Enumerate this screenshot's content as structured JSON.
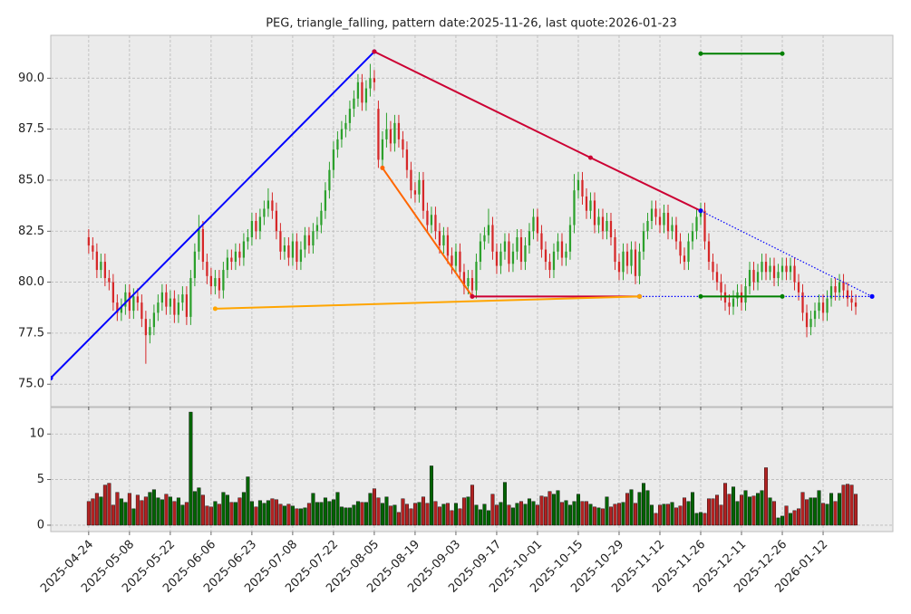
{
  "chart_data": {
    "type": "candlestick",
    "title": "PEG, triangle_falling, pattern date:2025-11-26, last quote:2026-01-23",
    "up_color": "#2ca02c",
    "down_color": "#d62728",
    "volume_up_color": "#006400",
    "volume_down_color": "#b22222",
    "grid": true,
    "xlim": [
      -9.3,
      197.1
    ],
    "xticks": [
      {
        "value": 0,
        "label": "2025-04-24"
      },
      {
        "value": 10,
        "label": "2025-05-08"
      },
      {
        "value": 20,
        "label": "2025-05-22"
      },
      {
        "value": 30,
        "label": "2025-06-06"
      },
      {
        "value": 40,
        "label": "2025-06-23"
      },
      {
        "value": 50,
        "label": "2025-07-08"
      },
      {
        "value": 60,
        "label": "2025-07-22"
      },
      {
        "value": 70,
        "label": "2025-08-05"
      },
      {
        "value": 80,
        "label": "2025-08-19"
      },
      {
        "value": 90,
        "label": "2025-09-03"
      },
      {
        "value": 100,
        "label": "2025-09-17"
      },
      {
        "value": 110,
        "label": "2025-10-01"
      },
      {
        "value": 120,
        "label": "2025-10-15"
      },
      {
        "value": 130,
        "label": "2025-10-29"
      },
      {
        "value": 140,
        "label": "2025-11-12"
      },
      {
        "value": 150,
        "label": "2025-11-26"
      },
      {
        "value": 160,
        "label": "2025-12-11"
      },
      {
        "value": 170,
        "label": "2025-12-26"
      },
      {
        "value": 180,
        "label": "2026-01-12"
      }
    ],
    "ylim": [
      73.9,
      92.1
    ],
    "yticks": [
      {
        "value": 75,
        "label": "75.0"
      },
      {
        "value": 77.5,
        "label": "77.5"
      },
      {
        "value": 80,
        "label": "80.0"
      },
      {
        "value": 82.5,
        "label": "82.5"
      },
      {
        "value": 85,
        "label": "85.0"
      },
      {
        "value": 87.5,
        "label": "87.5"
      },
      {
        "value": 90,
        "label": "90.0"
      }
    ],
    "candles": {
      "open": [
        82.2,
        81.8,
        81.5,
        80.6,
        81.0,
        80.2,
        80.0,
        79.0,
        78.5,
        78.8,
        79.5,
        78.6,
        79.3,
        79.0,
        78.2,
        77.4,
        77.8,
        78.5,
        79.0,
        79.5,
        78.8,
        79.2,
        78.4,
        79.0,
        79.4,
        78.3,
        80.2,
        81.5,
        82.6,
        81.0,
        80.3,
        79.8,
        80.2,
        79.6,
        80.6,
        81.2,
        81.0,
        81.5,
        81.2,
        82.0,
        82.2,
        83.0,
        82.5,
        83.2,
        83.6,
        84.0,
        83.5,
        82.5,
        81.5,
        81.8,
        81.2,
        82.0,
        81.0,
        81.6,
        82.3,
        81.8,
        82.5,
        82.8,
        83.5,
        84.5,
        85.5,
        86.5,
        87.0,
        87.5,
        87.8,
        88.5,
        89.0,
        89.8,
        88.8,
        89.5,
        90.0,
        88.5,
        86.0,
        87.0,
        87.5,
        86.8,
        87.8,
        87.0,
        86.5,
        85.5,
        84.5,
        84.3,
        85.0,
        83.5,
        82.8,
        83.3,
        82.5,
        81.8,
        82.3,
        81.3,
        80.8,
        81.5,
        80.5,
        79.8,
        80.2,
        79.6,
        81.0,
        82.0,
        82.3,
        82.8,
        81.5,
        80.8,
        81.5,
        82.0,
        80.9,
        81.5,
        82.2,
        81.0,
        81.8,
        82.5,
        83.2,
        82.4,
        81.6,
        81.0,
        80.6,
        81.5,
        82.0,
        81.2,
        81.5,
        82.8,
        84.5,
        85.0,
        84.2,
        83.5,
        84.0,
        82.8,
        83.2,
        82.5,
        83.0,
        82.2,
        81.0,
        80.5,
        81.5,
        80.8,
        81.6,
        80.3,
        81.5,
        82.5,
        83.0,
        83.6,
        83.2,
        82.8,
        83.4,
        82.5,
        82.8,
        82.0,
        81.3,
        81.0,
        82.0,
        82.5,
        83.2,
        83.5,
        82.0,
        81.0,
        80.5,
        80.0,
        79.5,
        79.0,
        78.8,
        79.2,
        79.5,
        79.0,
        79.8,
        80.6,
        80.0,
        80.5,
        81.0,
        80.5,
        80.8,
        80.2,
        80.5,
        80.8,
        80.5,
        80.8,
        80.0,
        79.5,
        78.5,
        77.8,
        78.2,
        78.6,
        79.0,
        78.5,
        79.2,
        79.8,
        79.5,
        80.0,
        79.6,
        79.2,
        79.0
      ],
      "high": [
        82.6,
        82.2,
        81.9,
        81.4,
        81.4,
        80.6,
        80.4,
        79.4,
        79.2,
        79.9,
        79.9,
        79.7,
        79.7,
        79.4,
        78.6,
        78.2,
        78.9,
        79.4,
        79.9,
        79.9,
        79.6,
        79.6,
        79.4,
        79.8,
        79.8,
        80.6,
        81.9,
        83.3,
        83.0,
        81.4,
        80.7,
        80.6,
        80.6,
        81.0,
        81.6,
        81.6,
        81.9,
        81.9,
        82.4,
        82.6,
        83.4,
        83.4,
        83.6,
        84.0,
        84.6,
        84.4,
        83.9,
        82.9,
        82.2,
        82.2,
        82.4,
        82.4,
        82.0,
        82.7,
        82.7,
        82.9,
        83.2,
        83.9,
        84.9,
        85.9,
        86.9,
        87.4,
        87.9,
        88.2,
        88.9,
        89.4,
        90.2,
        90.2,
        89.9,
        90.7,
        90.4,
        88.9,
        87.4,
        88.3,
        87.9,
        88.2,
        88.2,
        87.4,
        86.9,
        85.9,
        84.9,
        85.4,
        85.4,
        83.9,
        83.7,
        83.7,
        82.9,
        82.7,
        82.7,
        81.7,
        81.9,
        81.9,
        80.9,
        80.6,
        80.6,
        81.4,
        82.4,
        82.7,
        83.6,
        83.2,
        81.9,
        81.9,
        82.4,
        82.4,
        81.9,
        82.6,
        82.6,
        82.2,
        82.9,
        83.6,
        83.6,
        82.8,
        82.0,
        81.4,
        81.9,
        82.4,
        82.4,
        81.9,
        83.2,
        85.3,
        85.4,
        85.4,
        84.6,
        84.4,
        84.4,
        83.6,
        83.6,
        83.4,
        83.4,
        82.6,
        81.4,
        81.9,
        81.9,
        82.0,
        82.0,
        81.9,
        82.9,
        83.4,
        84.0,
        84.0,
        83.6,
        83.8,
        83.8,
        83.2,
        83.2,
        82.4,
        81.7,
        82.4,
        82.9,
        83.6,
        83.9,
        83.9,
        82.4,
        81.4,
        80.9,
        80.4,
        79.9,
        79.4,
        79.6,
        79.9,
        79.9,
        80.2,
        81.0,
        81.0,
        80.9,
        81.4,
        81.4,
        81.2,
        81.2,
        80.9,
        81.2,
        81.2,
        81.2,
        81.2,
        80.4,
        79.9,
        78.9,
        78.6,
        79.0,
        79.4,
        79.4,
        79.6,
        80.2,
        80.2,
        80.4,
        80.4,
        80.0,
        79.6,
        79.4
      ],
      "low": [
        81.4,
        81.1,
        80.2,
        80.2,
        79.8,
        79.6,
        78.6,
        78.1,
        78.1,
        78.4,
        78.2,
        78.2,
        78.6,
        77.8,
        76.0,
        77.0,
        77.4,
        78.1,
        78.6,
        78.4,
        78.4,
        78.0,
        78.0,
        78.6,
        77.9,
        77.9,
        79.8,
        81.1,
        80.6,
        79.9,
        79.4,
        79.4,
        79.2,
        79.2,
        80.2,
        80.6,
        80.6,
        80.8,
        80.8,
        81.6,
        81.8,
        82.1,
        82.1,
        82.8,
        83.2,
        83.1,
        82.1,
        81.1,
        81.1,
        80.8,
        80.8,
        80.6,
        80.6,
        81.2,
        81.4,
        81.4,
        82.1,
        82.4,
        83.1,
        84.1,
        85.1,
        86.1,
        86.6,
        87.1,
        87.4,
        88.1,
        88.6,
        88.4,
        88.4,
        89.1,
        89.4,
        85.6,
        85.6,
        86.6,
        86.4,
        86.4,
        86.6,
        86.1,
        85.1,
        84.1,
        83.9,
        83.9,
        83.1,
        82.4,
        82.4,
        82.1,
        81.4,
        81.4,
        80.9,
        80.4,
        80.4,
        80.1,
        79.4,
        79.4,
        79.2,
        79.2,
        80.6,
        81.6,
        81.9,
        81.1,
        80.4,
        80.4,
        81.1,
        80.5,
        80.5,
        81.1,
        80.6,
        80.6,
        81.4,
        82.1,
        82.0,
        81.2,
        80.6,
        80.2,
        80.2,
        81.1,
        80.8,
        80.8,
        81.1,
        82.4,
        84.1,
        83.8,
        83.1,
        83.1,
        82.4,
        82.4,
        82.1,
        82.1,
        81.8,
        80.6,
        80.1,
        80.1,
        80.4,
        80.4,
        79.9,
        79.9,
        81.1,
        82.1,
        82.6,
        82.8,
        82.4,
        82.4,
        82.1,
        82.1,
        81.6,
        80.9,
        80.6,
        80.6,
        81.6,
        82.1,
        82.8,
        81.6,
        80.6,
        80.1,
        79.6,
        79.1,
        78.6,
        78.4,
        78.4,
        78.8,
        78.6,
        78.6,
        79.4,
        79.6,
        79.6,
        80.1,
        80.1,
        80.1,
        79.8,
        79.8,
        80.1,
        80.1,
        80.1,
        79.6,
        79.1,
        78.1,
        77.3,
        77.4,
        77.8,
        78.2,
        78.1,
        78.1,
        78.8,
        79.1,
        79.1,
        79.2,
        78.8,
        78.6,
        78.4
      ],
      "close": [
        81.8,
        81.5,
        80.6,
        81.0,
        80.2,
        80.0,
        79.0,
        78.5,
        78.8,
        79.5,
        78.6,
        79.3,
        79.0,
        78.2,
        77.4,
        77.8,
        78.5,
        79.0,
        79.5,
        78.8,
        79.2,
        78.4,
        79.0,
        79.4,
        78.3,
        80.2,
        81.5,
        82.6,
        81.0,
        80.3,
        79.8,
        80.2,
        79.6,
        80.6,
        81.2,
        81.0,
        81.5,
        81.2,
        82.0,
        82.2,
        83.0,
        82.5,
        83.2,
        83.6,
        84.0,
        83.5,
        82.5,
        81.5,
        81.8,
        81.2,
        82.0,
        81.0,
        81.6,
        82.3,
        81.8,
        82.5,
        82.8,
        83.5,
        84.5,
        85.5,
        86.5,
        87.0,
        87.5,
        87.8,
        88.5,
        89.0,
        89.8,
        88.8,
        89.5,
        90.0,
        89.8,
        86.0,
        87.0,
        87.5,
        86.8,
        87.8,
        87.0,
        86.5,
        85.5,
        84.5,
        84.3,
        85.0,
        83.5,
        82.8,
        83.3,
        82.5,
        81.8,
        82.3,
        81.3,
        80.8,
        81.5,
        80.5,
        79.8,
        80.2,
        79.6,
        81.0,
        82.0,
        82.3,
        82.8,
        81.5,
        80.8,
        81.5,
        82.0,
        80.9,
        81.5,
        82.2,
        81.0,
        81.8,
        82.5,
        83.2,
        82.4,
        81.6,
        81.0,
        80.6,
        81.5,
        82.0,
        81.2,
        81.5,
        82.8,
        84.5,
        85.0,
        84.2,
        83.5,
        84.0,
        82.8,
        83.2,
        82.5,
        83.0,
        82.2,
        81.0,
        80.5,
        81.5,
        80.8,
        81.6,
        80.3,
        81.5,
        82.5,
        83.0,
        83.6,
        83.2,
        82.8,
        83.4,
        82.5,
        82.8,
        82.0,
        81.3,
        81.0,
        82.0,
        82.5,
        83.2,
        83.5,
        82.0,
        81.0,
        80.5,
        80.0,
        79.5,
        79.0,
        78.8,
        79.2,
        79.5,
        79.0,
        79.8,
        80.6,
        80.0,
        80.5,
        81.0,
        80.5,
        80.8,
        80.2,
        80.5,
        80.8,
        80.5,
        80.8,
        80.0,
        79.5,
        78.5,
        77.8,
        78.2,
        78.6,
        79.0,
        78.5,
        79.2,
        79.8,
        79.5,
        80.0,
        79.6,
        79.2,
        79.0,
        78.8
      ]
    },
    "lines": [
      {
        "color": "#0000ff",
        "style": "solid",
        "points": [
          [
            -9.3,
            75.3
          ],
          [
            70,
            91.3
          ]
        ]
      },
      {
        "color": "#cc0033",
        "style": "solid",
        "points": [
          [
            70,
            91.3
          ],
          [
            123,
            86.1
          ],
          [
            150,
            83.5
          ]
        ]
      },
      {
        "color": "#0000ff",
        "style": "dotted",
        "points": [
          [
            150,
            83.5
          ],
          [
            192,
            79.3
          ]
        ]
      },
      {
        "color": "#ff6600",
        "style": "solid",
        "points": [
          [
            72,
            85.6
          ],
          [
            94,
            79.3
          ]
        ]
      },
      {
        "color": "#cc0033",
        "style": "solid",
        "points": [
          [
            94,
            79.3
          ],
          [
            135,
            79.3
          ]
        ]
      },
      {
        "color": "#0000ff",
        "style": "dotted",
        "points": [
          [
            135,
            79.3
          ],
          [
            192,
            79.3
          ]
        ]
      },
      {
        "color": "#ffa500",
        "style": "solid",
        "points": [
          [
            31,
            78.7
          ],
          [
            135,
            79.3
          ]
        ]
      },
      {
        "color": "#008000",
        "style": "solid",
        "points": [
          [
            150,
            91.2
          ],
          [
            170,
            91.2
          ]
        ]
      },
      {
        "color": "#008000",
        "style": "solid",
        "points": [
          [
            150,
            79.3
          ],
          [
            170,
            79.3
          ]
        ]
      }
    ],
    "volume": {
      "ylim": [
        -0.7,
        12.9
      ],
      "yticks": [
        0,
        5,
        10
      ],
      "values": [
        2.6,
        2.9,
        3.5,
        3.1,
        4.4,
        4.6,
        2.2,
        3.6,
        2.9,
        2.5,
        3.5,
        1.8,
        3.3,
        2.7,
        3.1,
        3.6,
        3.9,
        3.0,
        2.8,
        3.4,
        3.1,
        2.6,
        3.0,
        2.2,
        2.5,
        12.4,
        3.7,
        4.1,
        3.3,
        2.1,
        2.0,
        2.6,
        2.3,
        3.6,
        3.3,
        2.5,
        2.5,
        3.0,
        3.6,
        5.3,
        2.6,
        2.0,
        2.7,
        2.4,
        2.7,
        2.9,
        2.8,
        2.3,
        2.1,
        2.3,
        2.1,
        1.8,
        1.8,
        1.9,
        2.4,
        3.5,
        2.5,
        2.5,
        3.0,
        2.6,
        2.8,
        3.6,
        2.0,
        1.9,
        1.9,
        2.2,
        2.6,
        2.5,
        2.5,
        3.5,
        4.0,
        3.0,
        2.4,
        3.1,
        2.1,
        2.2,
        1.4,
        2.9,
        2.3,
        1.8,
        2.4,
        2.5,
        3.1,
        2.4,
        6.5,
        2.6,
        2.0,
        2.3,
        2.4,
        1.6,
        2.4,
        1.8,
        3.0,
        3.1,
        4.4,
        2.2,
        1.7,
        2.3,
        1.6,
        3.4,
        2.2,
        2.5,
        4.7,
        2.2,
        1.9,
        2.4,
        2.6,
        2.3,
        2.9,
        2.6,
        2.2,
        3.2,
        3.1,
        3.7,
        3.4,
        3.8,
        2.5,
        2.7,
        2.2,
        2.6,
        3.4,
        2.6,
        2.6,
        2.3,
        2.0,
        1.9,
        1.8,
        3.1,
        2.0,
        2.3,
        2.4,
        2.5,
        3.5,
        3.9,
        2.4,
        3.6,
        4.6,
        3.8,
        2.2,
        1.3,
        2.2,
        2.3,
        2.3,
        2.5,
        1.9,
        2.1,
        3.0,
        2.6,
        3.6,
        1.3,
        1.4,
        1.3,
        2.9,
        2.9,
        3.3,
        2.2,
        4.6,
        3.4,
        4.2,
        2.6,
        3.3,
        3.8,
        3.1,
        3.2,
        3.5,
        3.8,
        6.3,
        3.0,
        2.6,
        0.8,
        1.0,
        2.1,
        1.3,
        1.6,
        1.8,
        3.6,
        2.8,
        3.0,
        3.0,
        3.8,
        2.4,
        2.3,
        3.5,
        2.6,
        3.5,
        4.4,
        4.5,
        4.4,
        3.4
      ]
    }
  }
}
